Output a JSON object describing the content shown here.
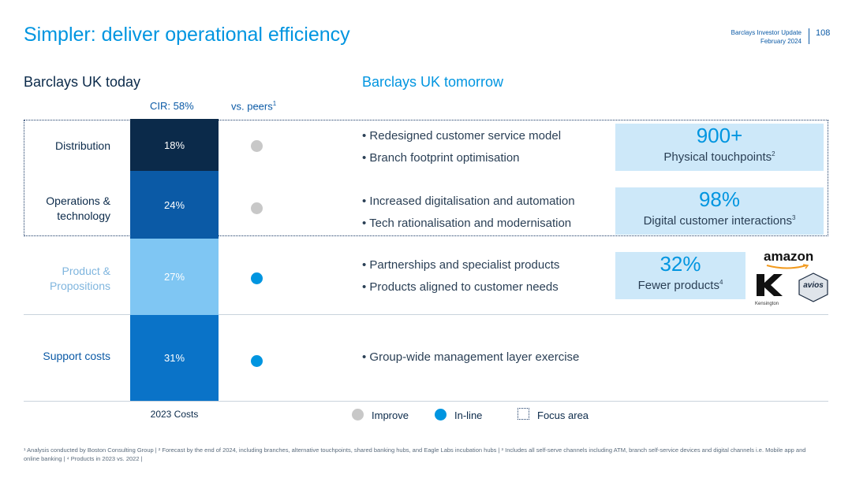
{
  "header": {
    "title": "Simpler: deliver operational efficiency",
    "doc_name": "Barclays Investor Update",
    "doc_date": "February 2024",
    "page_number": "108"
  },
  "today": {
    "heading": "Barclays UK today",
    "cir_label": "CIR: 58%",
    "peers_label": "vs. peers",
    "peers_sup": "1",
    "rows": [
      {
        "label_line1": "Distribution",
        "label_line2": "",
        "value": "18%",
        "bar_color": "#0b2a4a",
        "status": "Improve"
      },
      {
        "label_line1": "Operations &",
        "label_line2": "technology",
        "value": "24%",
        "bar_color": "#0b5aa6",
        "status": "Improve"
      },
      {
        "label_line1": "Product &",
        "label_line2": "Propositions",
        "value": "27%",
        "bar_color": "#7fc6f3",
        "status": "In-line"
      },
      {
        "label_line1": "Support costs",
        "label_line2": "",
        "value": "31%",
        "bar_color": "#0a73c8",
        "status": "In-line"
      }
    ],
    "costs_label": "2023 Costs"
  },
  "tomorrow": {
    "heading": "Barclays UK tomorrow",
    "bullets": [
      "Redesigned customer service model",
      "Branch footprint optimisation",
      "Increased digitalisation and automation",
      "Tech rationalisation and modernisation",
      "Partnerships and specialist products",
      "Products aligned to customer needs",
      "Group-wide management layer exercise"
    ],
    "kpis": [
      {
        "value": "900+",
        "label": "Physical touchpoints",
        "sup": "2"
      },
      {
        "value": "98%",
        "label": "Digital customer interactions",
        "sup": "3"
      },
      {
        "value": "32%",
        "label": "Fewer products",
        "sup": "4"
      }
    ],
    "partner_logos": {
      "amazon": "amazon",
      "kensington": "Kensington",
      "avios": "avios"
    }
  },
  "legend": {
    "improve": "Improve",
    "inline": "In-line",
    "focus": "Focus area"
  },
  "colors": {
    "improve": "#c8c8c8",
    "inline": "#0095e0",
    "accent": "#0095e0"
  },
  "footnote": "¹ Analysis conducted by Boston Consulting Group | ² Forecast by the end of 2024, including branches, alternative touchpoints, shared banking hubs, and Eagle Labs incubation hubs | ³ Includes all self-serve channels including ATM, branch self-service devices and digital channels i.e. Mobile app and online banking | ⁴ Products in 2023 vs. 2022 |"
}
